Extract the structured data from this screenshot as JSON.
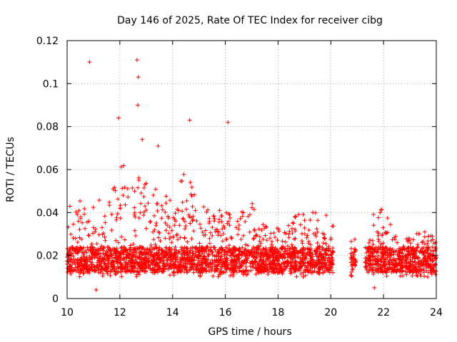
{
  "chart_data": {
    "type": "scatter",
    "title": "Day 146 of 2025, Rate Of TEC Index for receiver cibg",
    "xlabel": "GPS time / hours",
    "ylabel": "ROTI / TECUs",
    "xlim": [
      10,
      24
    ],
    "ylim": [
      0,
      0.12
    ],
    "x_ticks": [
      10,
      12,
      14,
      16,
      18,
      20,
      22,
      24
    ],
    "y_ticks": [
      0,
      0.02,
      0.04,
      0.06,
      0.08,
      0.1,
      0.12
    ],
    "y_tick_labels": [
      "0",
      "0.02",
      "0.04",
      "0.06",
      "0.08",
      "0.1",
      "0.12"
    ],
    "grid": true,
    "marker": "plus",
    "color": "#ff0000",
    "gaps_hours": [
      [
        20.1,
        20.75
      ],
      [
        20.95,
        21.3
      ]
    ],
    "notable_points": [
      {
        "x": 10.85,
        "y": 0.11
      },
      {
        "x": 12.65,
        "y": 0.111
      },
      {
        "x": 12.7,
        "y": 0.103
      },
      {
        "x": 12.68,
        "y": 0.09
      },
      {
        "x": 14.65,
        "y": 0.083
      },
      {
        "x": 16.1,
        "y": 0.082
      },
      {
        "x": 11.95,
        "y": 0.084
      },
      {
        "x": 12.85,
        "y": 0.074
      },
      {
        "x": 13.45,
        "y": 0.071
      },
      {
        "x": 11.1,
        "y": 0.004
      },
      {
        "x": 21.65,
        "y": 0.005
      }
    ],
    "envelope": [
      {
        "x": 10.0,
        "y": 0.042
      },
      {
        "x": 10.5,
        "y": 0.047
      },
      {
        "x": 11.0,
        "y": 0.045
      },
      {
        "x": 11.5,
        "y": 0.048
      },
      {
        "x": 12.0,
        "y": 0.065
      },
      {
        "x": 12.5,
        "y": 0.055
      },
      {
        "x": 13.0,
        "y": 0.06
      },
      {
        "x": 13.5,
        "y": 0.05
      },
      {
        "x": 14.0,
        "y": 0.046
      },
      {
        "x": 14.5,
        "y": 0.06
      },
      {
        "x": 15.0,
        "y": 0.045
      },
      {
        "x": 15.5,
        "y": 0.04
      },
      {
        "x": 16.0,
        "y": 0.042
      },
      {
        "x": 16.5,
        "y": 0.04
      },
      {
        "x": 17.0,
        "y": 0.045
      },
      {
        "x": 17.5,
        "y": 0.034
      },
      {
        "x": 18.0,
        "y": 0.033
      },
      {
        "x": 18.5,
        "y": 0.038
      },
      {
        "x": 19.0,
        "y": 0.04
      },
      {
        "x": 19.5,
        "y": 0.042
      },
      {
        "x": 20.0,
        "y": 0.04
      },
      {
        "x": 20.9,
        "y": 0.028
      },
      {
        "x": 21.5,
        "y": 0.035
      },
      {
        "x": 21.8,
        "y": 0.046
      },
      {
        "x": 22.5,
        "y": 0.03
      },
      {
        "x": 23.0,
        "y": 0.03
      },
      {
        "x": 23.5,
        "y": 0.032
      },
      {
        "x": 24.0,
        "y": 0.03
      }
    ]
  }
}
